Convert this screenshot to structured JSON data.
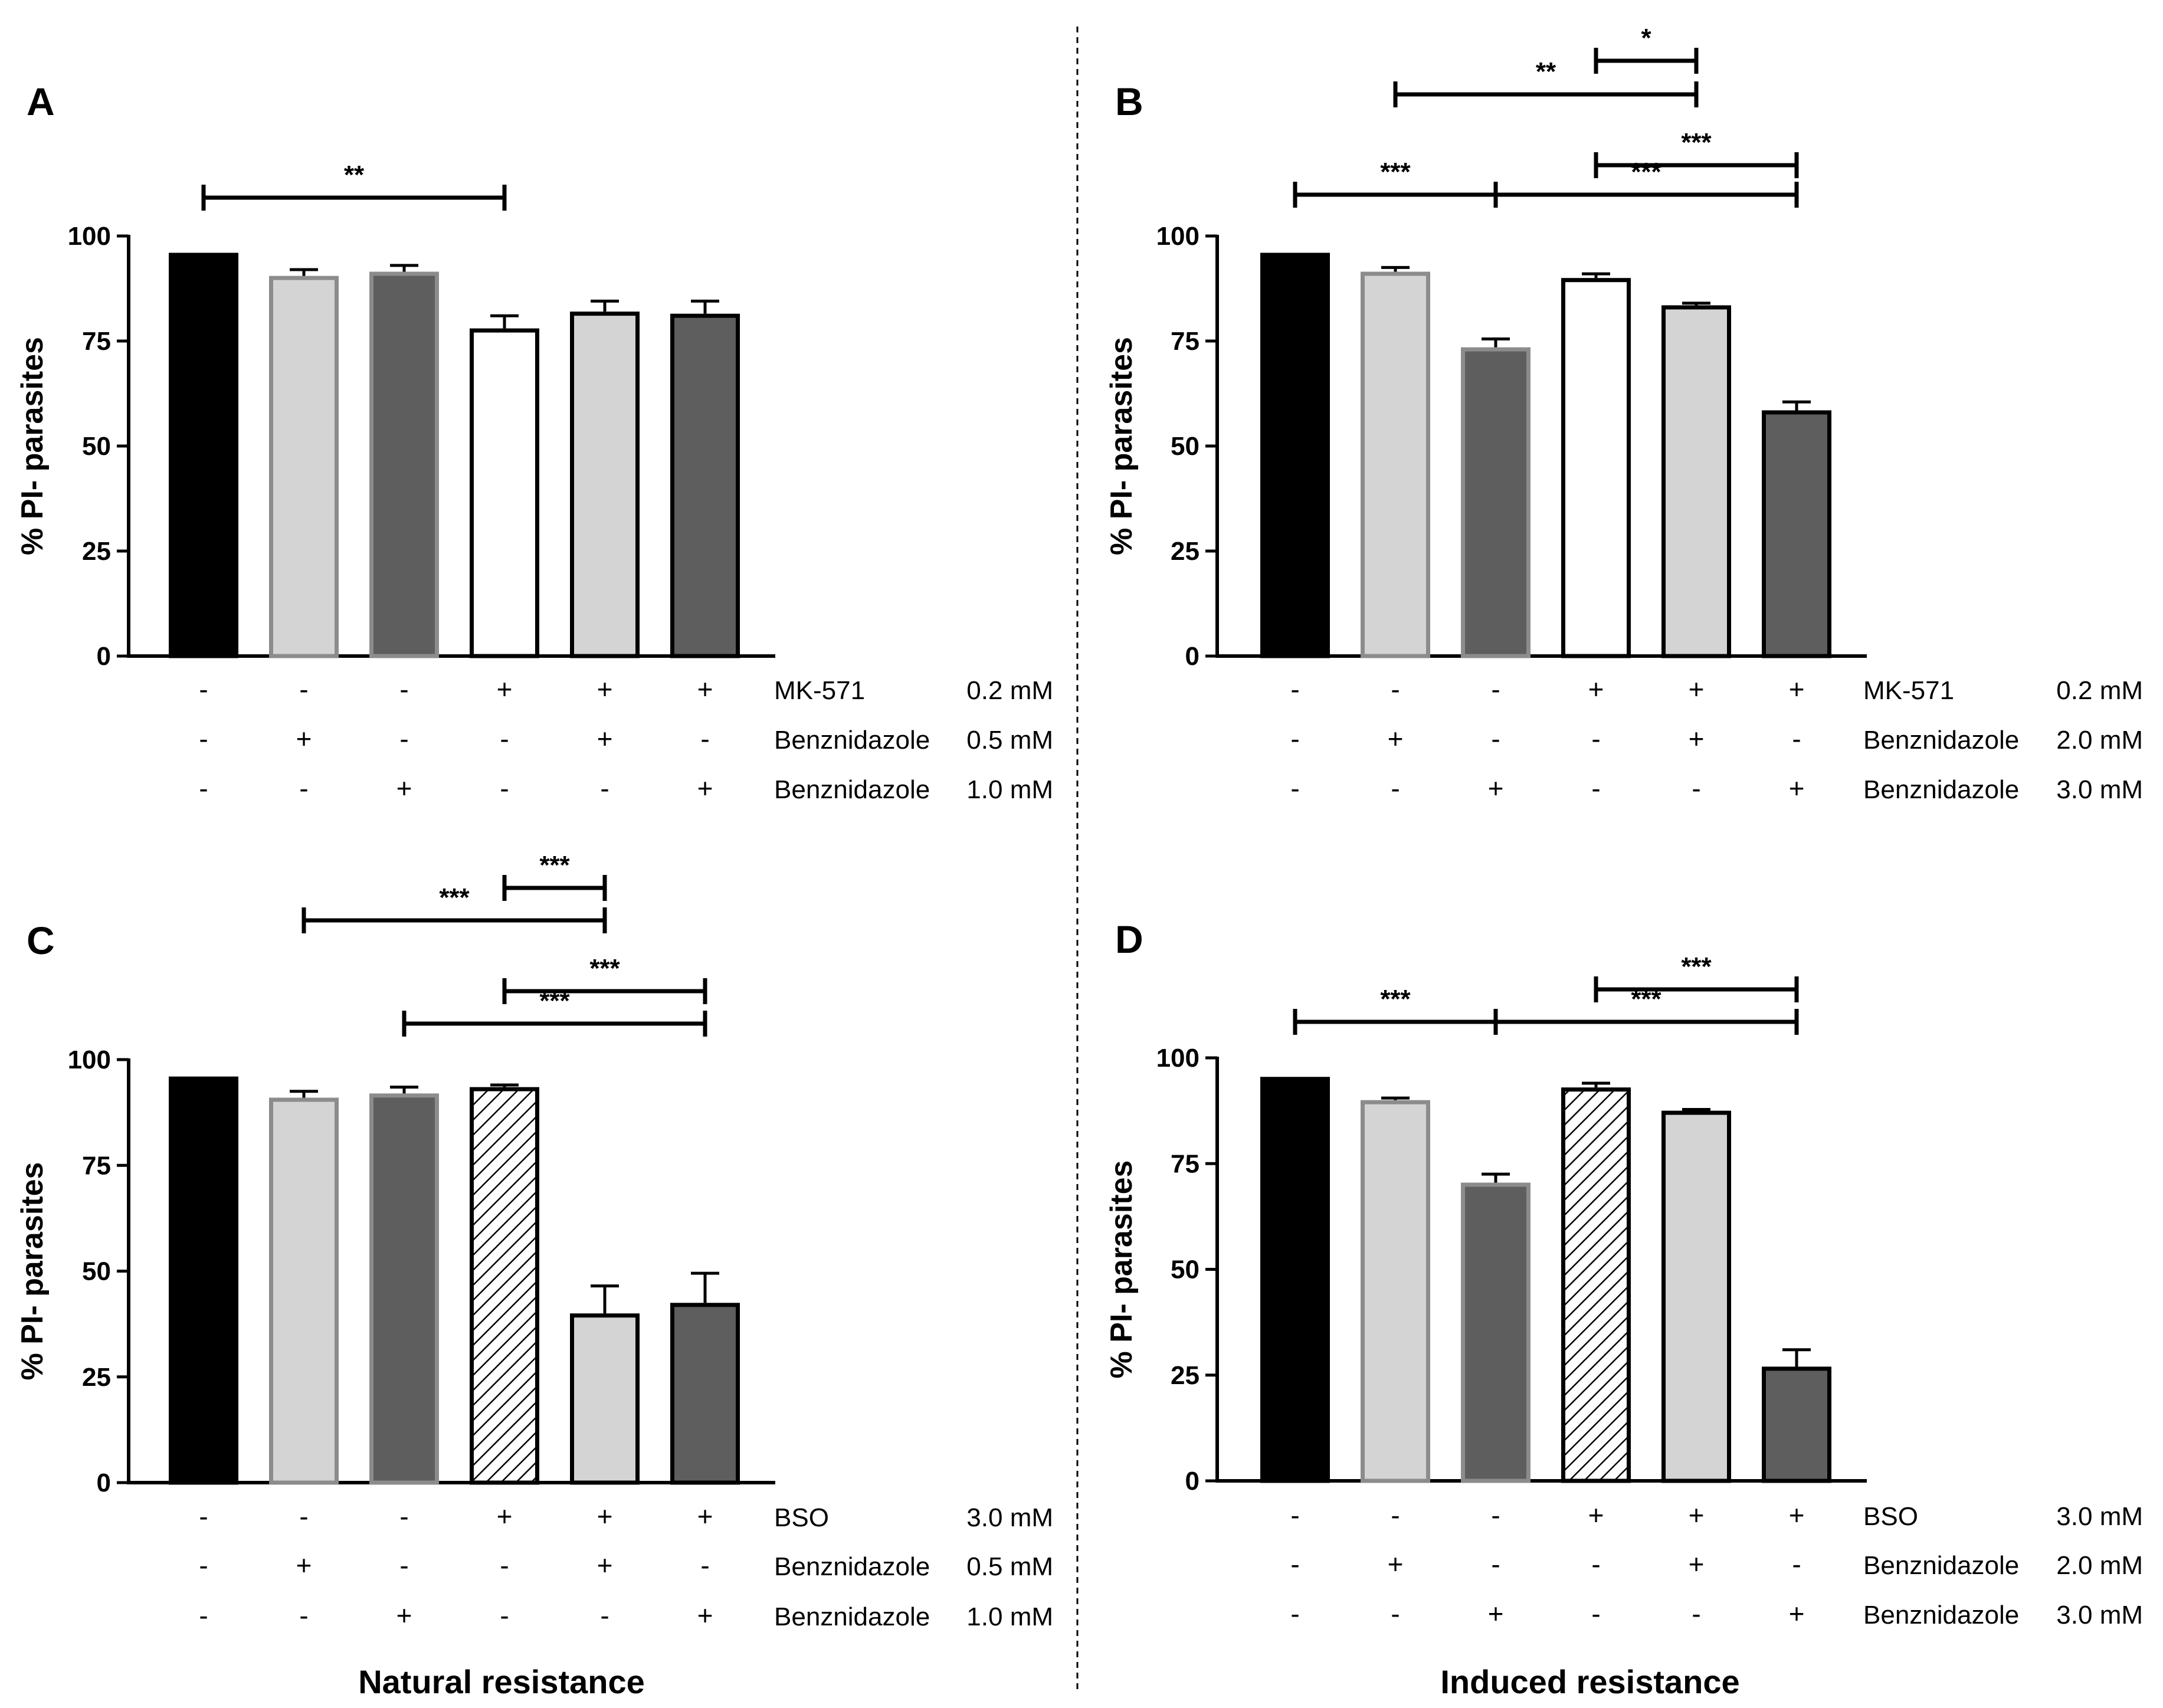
{
  "group_labels": {
    "left": "Natural resistance",
    "right": "Induced resistance"
  },
  "colors": {
    "black": "#000000",
    "light": "#d4d4d4",
    "dark": "#5e5e5e",
    "white": "#ffffff",
    "greyBorder": "#8c8c8c"
  },
  "chart_data": [
    {
      "panel": "A",
      "type": "bar",
      "ylabel": "% PI- parasites",
      "ylim": [
        0,
        100
      ],
      "yticks": [
        "0",
        "25",
        "50",
        "75",
        "100"
      ],
      "values": [
        96,
        90.5,
        91.5,
        78,
        82,
        81.5
      ],
      "errors": [
        0,
        1.5,
        1.5,
        3,
        2.5,
        3
      ],
      "fills": [
        "black",
        "light",
        "dark",
        "white",
        "light",
        "dark"
      ],
      "borders": [
        "black",
        "grey",
        "grey",
        "black",
        "black",
        "black"
      ],
      "conditions": [
        {
          "name": "MK-571",
          "conc": "0.2 mM",
          "signs": [
            "-",
            "-",
            "-",
            "+",
            "+",
            "+"
          ]
        },
        {
          "name": "Benznidazole",
          "conc": "0.5 mM",
          "signs": [
            "-",
            "+",
            "-",
            "-",
            "+",
            "-"
          ]
        },
        {
          "name": "Benznidazole",
          "conc": "1.0 mM",
          "signs": [
            "-",
            "-",
            "+",
            "-",
            "-",
            "+"
          ]
        }
      ],
      "significance": [
        {
          "from": 0,
          "to": 3,
          "label": "**"
        }
      ]
    },
    {
      "panel": "B",
      "type": "bar",
      "ylabel": "% PI- parasites",
      "ylim": [
        0,
        100
      ],
      "yticks": [
        "0",
        "25",
        "50",
        "75",
        "100"
      ],
      "values": [
        96,
        91.5,
        73.5,
        90,
        83.5,
        58.5
      ],
      "errors": [
        0,
        1,
        2,
        1,
        0.5,
        2
      ],
      "fills": [
        "black",
        "light",
        "dark",
        "white",
        "light",
        "dark"
      ],
      "borders": [
        "black",
        "grey",
        "grey",
        "black",
        "black",
        "black"
      ],
      "conditions": [
        {
          "name": "MK-571",
          "conc": "0.2 mM",
          "signs": [
            "-",
            "-",
            "-",
            "+",
            "+",
            "+"
          ]
        },
        {
          "name": "Benznidazole",
          "conc": "2.0 mM",
          "signs": [
            "-",
            "+",
            "-",
            "-",
            "+",
            "-"
          ]
        },
        {
          "name": "Benznidazole",
          "conc": "3.0 mM",
          "signs": [
            "-",
            "-",
            "+",
            "-",
            "-",
            "+"
          ]
        }
      ],
      "significance": [
        {
          "from": 0,
          "to": 2,
          "label": "***"
        },
        {
          "from": 2,
          "to": 5,
          "label": "***"
        },
        {
          "from": 3,
          "to": 5,
          "label": "***"
        },
        {
          "from": 1,
          "to": 4,
          "label": "**"
        },
        {
          "from": 3,
          "to": 4,
          "label": "*"
        }
      ]
    },
    {
      "panel": "C",
      "type": "bar",
      "ylabel": "% PI- parasites",
      "ylim": [
        0,
        100
      ],
      "yticks": [
        "0",
        "25",
        "50",
        "75",
        "100"
      ],
      "values": [
        96,
        91,
        92,
        93.5,
        40,
        42.5
      ],
      "errors": [
        0,
        1.5,
        1.5,
        0.5,
        6.5,
        7
      ],
      "fills": [
        "black",
        "light",
        "dark",
        "hatch",
        "light",
        "dark"
      ],
      "borders": [
        "black",
        "grey",
        "grey",
        "black",
        "black",
        "black"
      ],
      "conditions": [
        {
          "name": "BSO",
          "conc": "3.0 mM",
          "signs": [
            "-",
            "-",
            "-",
            "+",
            "+",
            "+"
          ]
        },
        {
          "name": "Benznidazole",
          "conc": "0.5 mM",
          "signs": [
            "-",
            "+",
            "-",
            "-",
            "+",
            "-"
          ]
        },
        {
          "name": "Benznidazole",
          "conc": "1.0 mM",
          "signs": [
            "-",
            "-",
            "+",
            "-",
            "-",
            "+"
          ]
        }
      ],
      "significance": [
        {
          "from": 2,
          "to": 5,
          "label": "***"
        },
        {
          "from": 3,
          "to": 5,
          "label": "***"
        },
        {
          "from": 1,
          "to": 4,
          "label": "***"
        },
        {
          "from": 3,
          "to": 4,
          "label": "***"
        }
      ]
    },
    {
      "panel": "D",
      "type": "bar",
      "ylabel": "% PI- parasites",
      "ylim": [
        0,
        100
      ],
      "yticks": [
        "0",
        "25",
        "50",
        "75",
        "100"
      ],
      "values": [
        95.5,
        90,
        70.5,
        93,
        87.5,
        27
      ],
      "errors": [
        0,
        0.5,
        2,
        1,
        0.3,
        4
      ],
      "fills": [
        "black",
        "light",
        "dark",
        "hatch",
        "light",
        "dark"
      ],
      "borders": [
        "black",
        "grey",
        "grey",
        "black",
        "black",
        "black"
      ],
      "conditions": [
        {
          "name": "BSO",
          "conc": "3.0 mM",
          "signs": [
            "-",
            "-",
            "-",
            "+",
            "+",
            "+"
          ]
        },
        {
          "name": "Benznidazole",
          "conc": "2.0 mM",
          "signs": [
            "-",
            "+",
            "-",
            "-",
            "+",
            "-"
          ]
        },
        {
          "name": "Benznidazole",
          "conc": "3.0 mM",
          "signs": [
            "-",
            "-",
            "+",
            "-",
            "-",
            "+"
          ]
        }
      ],
      "significance": [
        {
          "from": 0,
          "to": 2,
          "label": "***"
        },
        {
          "from": 2,
          "to": 5,
          "label": "***"
        },
        {
          "from": 3,
          "to": 5,
          "label": "***"
        }
      ]
    }
  ]
}
